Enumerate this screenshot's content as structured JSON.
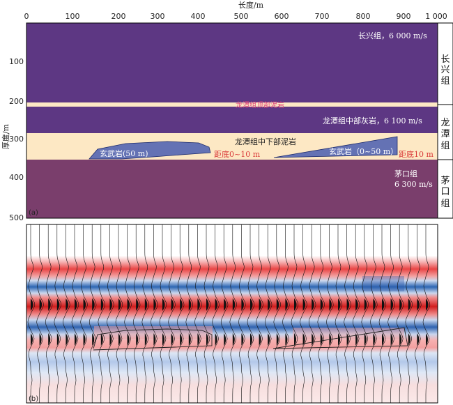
{
  "model": {
    "x_axis_title": "长度/m",
    "y_axis_title": "厚度/m",
    "x_ticks": [
      "0",
      "100",
      "200",
      "300",
      "400",
      "500",
      "600",
      "700",
      "800",
      "900",
      "1 000"
    ],
    "y_ticks": [
      "100",
      "200",
      "300",
      "400",
      "500"
    ],
    "panel_a": "(a)",
    "panel_b": "(b)",
    "labels": {
      "changxing": "长兴组，6 000 m/s",
      "mudstone_top": "龙潭组顶部泥岩",
      "limestone": "龙潭组中部灰岩，6 100 m/s",
      "mudstone_mid": "龙潭组中下部泥岩",
      "basalt_left": "玄武岩(50 m)",
      "dist_left": "距底0~10 m",
      "basalt_right": "玄武岩（0~50 m）",
      "dist_right": "距底10 m",
      "maokou_1": "茅口组",
      "maokou_2": "6 300 m/s"
    },
    "formations": {
      "changxing": [
        "长",
        "兴",
        "组"
      ],
      "longtan": [
        "龙",
        "潭",
        "组"
      ],
      "maokou": [
        "茅",
        "口",
        "组"
      ]
    },
    "colors": {
      "changxing": "#5d3783",
      "limestone": "#5d3783",
      "mudstone": "#fde8c4",
      "maokou": "#7a3e6c",
      "basalt": "#6472b4"
    }
  }
}
